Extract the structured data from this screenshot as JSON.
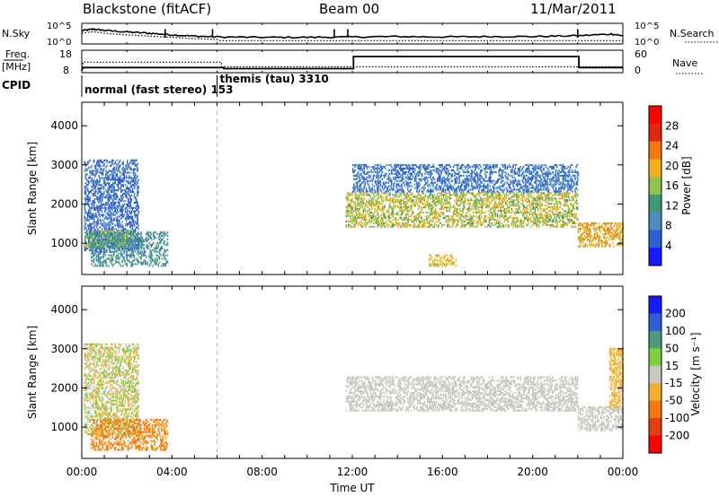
{
  "header": {
    "title": "Blackstone (fitACF)",
    "beam": "Beam 00",
    "date": "11/Mar/2011"
  },
  "chart_data": [
    {
      "type": "line",
      "panel": "nsky-nsearch",
      "left_label": "N.Sky",
      "right_label": "N.Search",
      "left_ticks": [
        "10^5",
        "10^0"
      ],
      "right_ticks": [
        "10^5",
        "10^0"
      ],
      "series": [
        {
          "name": "N.Sky",
          "style": "solid",
          "x": [
            0,
            0.5,
            1,
            2,
            3,
            4,
            5,
            6,
            8,
            10,
            12,
            14,
            16,
            18,
            20,
            22,
            23.5,
            24
          ],
          "y": [
            3.2,
            3.6,
            3.3,
            2.9,
            2.6,
            2.2,
            1.9,
            1.7,
            1.6,
            1.6,
            1.7,
            1.8,
            1.7,
            1.8,
            1.8,
            2.0,
            2.4,
            2.0
          ]
        },
        {
          "name": "N.Search",
          "style": "dotted",
          "x": [
            0,
            0.5,
            1,
            2,
            3,
            4,
            5,
            6,
            6.1,
            24
          ],
          "y": [
            2.6,
            3.0,
            2.6,
            2.2,
            1.9,
            1.6,
            1.3,
            1.1,
            0.8,
            0.8
          ]
        }
      ],
      "spikes_x": [
        3.7,
        5.8,
        11.2,
        11.8,
        22.0
      ]
    },
    {
      "type": "line",
      "panel": "freq-nave",
      "left_label": "Freq.",
      "left_unit": "[MHz]",
      "right_label": "Nave",
      "left_ticks": [
        "18",
        "8"
      ],
      "right_ticks": [
        "60",
        "0"
      ],
      "series": [
        {
          "name": "Freq.",
          "style": "solid",
          "x": [
            0,
            0.05,
            6.3,
            6.3,
            12.05,
            12.05,
            22.05,
            22.05,
            24
          ],
          "y": [
            9,
            10.3,
            10.3,
            9.8,
            9.8,
            15.2,
            15.2,
            10.3,
            10.3
          ]
        },
        {
          "name": "Nave",
          "style": "dotted",
          "x": [
            0,
            0.05,
            6.2,
            6.2,
            24
          ],
          "y": [
            9,
            12.7,
            12.7,
            10.6,
            10.6
          ]
        }
      ]
    },
    {
      "type": "table",
      "panel": "cpid",
      "label": "CPID",
      "entries": [
        {
          "text": "normal (fast stereo) 153",
          "x": 0.0
        },
        {
          "text": "themis (tau) 3310",
          "x": 6.0
        }
      ]
    },
    {
      "type": "heatmap",
      "panel": "power",
      "ylabel": "Slant Range [km]",
      "yticks": [
        1000,
        2000,
        3000,
        4000
      ],
      "ylim": [
        200,
        4600
      ],
      "xlim": [
        0,
        24
      ],
      "colorbar": {
        "label": "Power [dB]",
        "ticks": [
          4,
          8,
          12,
          16,
          20,
          24,
          28
        ]
      },
      "regions": [
        {
          "t": [
            0.1,
            2.5
          ],
          "r": [
            800,
            3100
          ],
          "v": [
            6,
            10
          ]
        },
        {
          "t": [
            0.1,
            2.3
          ],
          "r": [
            880,
            1300
          ],
          "v": [
            14,
            20
          ]
        },
        {
          "t": [
            0.4,
            3.8
          ],
          "r": [
            400,
            1300
          ],
          "v": [
            8,
            16
          ]
        },
        {
          "t": [
            11.7,
            22.0
          ],
          "r": [
            1400,
            2300
          ],
          "v": [
            14,
            22
          ]
        },
        {
          "t": [
            12.0,
            22.0
          ],
          "r": [
            2300,
            3000
          ],
          "v": [
            6,
            12
          ]
        },
        {
          "t": [
            15.4,
            16.6
          ],
          "r": [
            400,
            700
          ],
          "v": [
            18,
            22
          ]
        },
        {
          "t": [
            22.0,
            24.0
          ],
          "r": [
            900,
            1500
          ],
          "v": [
            18,
            24
          ]
        }
      ]
    },
    {
      "type": "heatmap",
      "panel": "velocity",
      "ylabel": "Slant Range [km]",
      "yticks": [
        1000,
        2000,
        3000,
        4000
      ],
      "ylim": [
        200,
        4600
      ],
      "xlim": [
        0,
        24
      ],
      "xticks": [
        "00:00",
        "04:00",
        "08:00",
        "12:00",
        "16:00",
        "20:00",
        "00:00"
      ],
      "xlabel": "Time UT",
      "colorbar": {
        "label": "Velocity [m s⁻¹]",
        "ticks": [
          "200",
          "100",
          "50",
          "15",
          "-15",
          "-50",
          "-100",
          "-200"
        ]
      },
      "regions": [
        {
          "t": [
            0.1,
            2.5
          ],
          "r": [
            800,
            3100
          ],
          "v": [
            -50,
            50
          ]
        },
        {
          "t": [
            0.4,
            3.8
          ],
          "r": [
            400,
            1200
          ],
          "v": [
            -80,
            -40
          ]
        },
        {
          "t": [
            11.7,
            22.0
          ],
          "r": [
            1400,
            2300
          ],
          "v": [
            -15,
            15
          ]
        },
        {
          "t": [
            22.0,
            24.0
          ],
          "r": [
            900,
            1500
          ],
          "v": [
            -15,
            15
          ]
        },
        {
          "t": [
            23.4,
            24.0
          ],
          "r": [
            1500,
            3000
          ],
          "v": [
            -50,
            -30
          ]
        }
      ]
    }
  ],
  "colors": {
    "power_scale": [
      "#1a1aff",
      "#2f5fd0",
      "#4f8dbe",
      "#3f9a73",
      "#8fc24f",
      "#f2b020",
      "#f07a10",
      "#e02810",
      "#ff0000"
    ],
    "velocity_scale": [
      "#1a1aff",
      "#2f5fd0",
      "#4f9a7a",
      "#7fd040",
      "#c8c8c0",
      "#f3b030",
      "#f07a10",
      "#e04010",
      "#ff0000"
    ]
  }
}
